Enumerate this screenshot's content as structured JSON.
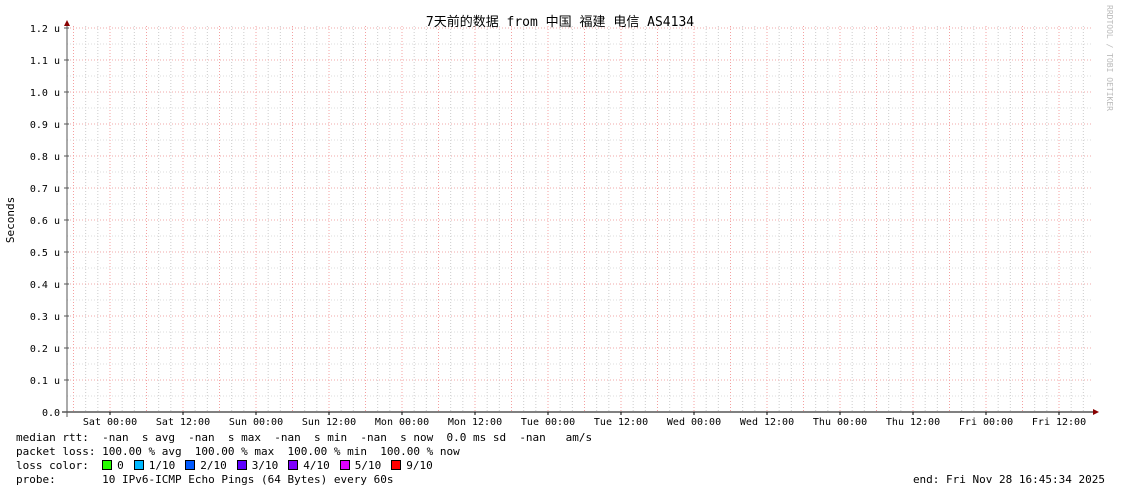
{
  "chart_data": {
    "type": "line",
    "title": "7天前的数据 from 中国 福建 电信 AS4134",
    "ylabel": "Seconds",
    "xlabel": "",
    "ylim": [
      0,
      1.2
    ],
    "y_ticks": [
      "0.0",
      "0.1 u",
      "0.2 u",
      "0.3 u",
      "0.4 u",
      "0.5 u",
      "0.6 u",
      "0.7 u",
      "0.8 u",
      "0.9 u",
      "1.0 u",
      "1.1 u",
      "1.2 u"
    ],
    "x_ticks": [
      "Sat 00:00",
      "Sat 12:00",
      "Sun 00:00",
      "Sun 12:00",
      "Mon 00:00",
      "Mon 12:00",
      "Tue 00:00",
      "Tue 12:00",
      "Wed 00:00",
      "Wed 12:00",
      "Thu 00:00",
      "Thu 12:00",
      "Fri 00:00",
      "Fri 12:00"
    ],
    "grid": true,
    "series": [],
    "watermark": "RRDTOOL / TOBI OETIKER"
  },
  "legend": {
    "median_rtt": "median rtt:  -nan  s avg  -nan  s max  -nan  s min  -nan  s now  0.0 ms sd  -nan   am/s",
    "packet_loss": "packet loss: 100.00 % avg  100.00 % max  100.00 % min  100.00 % now",
    "loss_color_label": "loss color:",
    "loss_colors": [
      {
        "label": "0",
        "color": "#26ff00"
      },
      {
        "label": "1/10",
        "color": "#00b8ff"
      },
      {
        "label": "2/10",
        "color": "#0059ff"
      },
      {
        "label": "3/10",
        "color": "#5e00ff"
      },
      {
        "label": "4/10",
        "color": "#7e00ff"
      },
      {
        "label": "5/10",
        "color": "#dd00ff"
      },
      {
        "label": "9/10",
        "color": "#ff0000"
      }
    ],
    "probe_label": "probe:",
    "probe": "10 IPv6-ICMP Echo Pings (64 Bytes) every 60s",
    "end": "end: Fri Nov 28 16:45:34 2025"
  }
}
